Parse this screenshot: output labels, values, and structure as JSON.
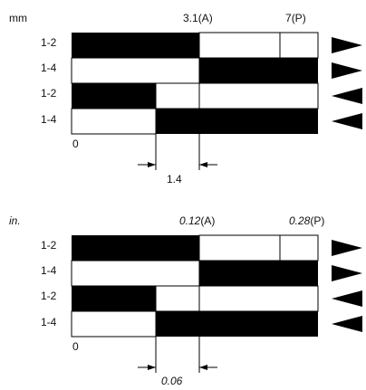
{
  "colors": {
    "filled": "#000000",
    "empty": "#ffffff",
    "line": "#000000"
  },
  "panels": [
    {
      "unit": "mm",
      "unit_italic": false,
      "label_a": {
        "value": "3.1",
        "suffix": "(A)"
      },
      "label_p": {
        "value": "7",
        "suffix": "(P)"
      },
      "zero": "0",
      "dim": "1.4",
      "rows": [
        {
          "label": "1-2",
          "black": "left",
          "split": "A",
          "direction": "left-pointing"
        },
        {
          "label": "1-4",
          "black": "right",
          "split": "A",
          "direction": "left-pointing"
        },
        {
          "label": "1-2",
          "black": "left",
          "split": "B",
          "direction": "right-pointing"
        },
        {
          "label": "1-4",
          "black": "right",
          "split": "B",
          "direction": "right-pointing"
        }
      ]
    },
    {
      "unit": "in.",
      "unit_italic": true,
      "label_a": {
        "value": "0.12",
        "suffix": "(A)"
      },
      "label_p": {
        "value": "0.28",
        "suffix": "(P)"
      },
      "zero": "0",
      "dim": "0.06",
      "rows": [
        {
          "label": "1-2",
          "black": "left",
          "split": "A",
          "direction": "left-pointing"
        },
        {
          "label": "1-4",
          "black": "right",
          "split": "A",
          "direction": "left-pointing"
        },
        {
          "label": "1-2",
          "black": "left",
          "split": "B",
          "direction": "right-pointing"
        },
        {
          "label": "1-4",
          "black": "right",
          "split": "B",
          "direction": "right-pointing"
        }
      ]
    }
  ]
}
